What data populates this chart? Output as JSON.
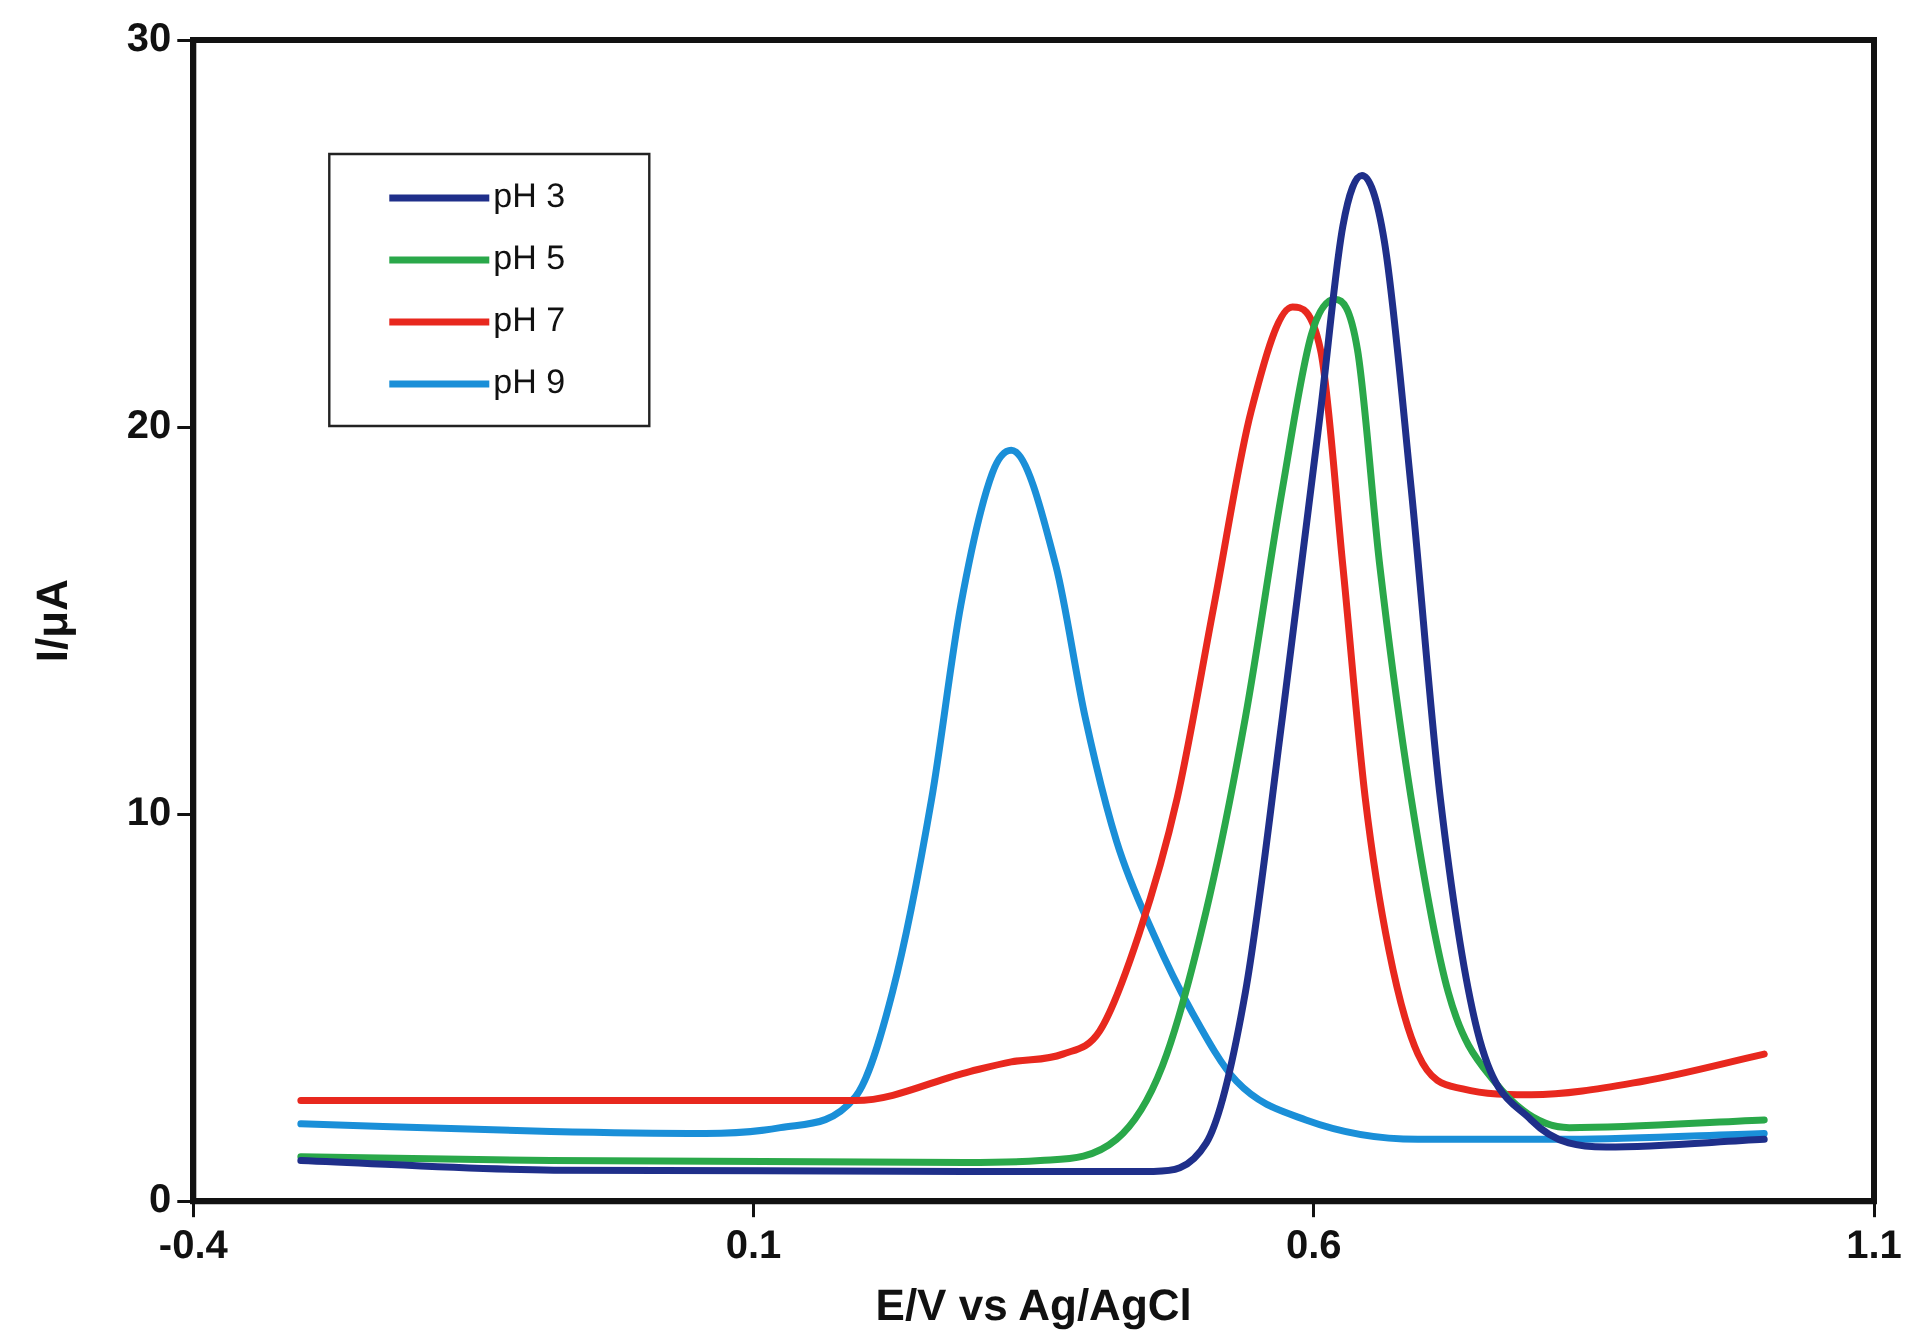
{
  "chart_data": {
    "type": "line",
    "xlabel": "E/V vs Ag/AgCl",
    "ylabel": "I/μA",
    "xlim": [
      -0.4,
      1.1
    ],
    "xticks": [
      -0.4,
      0.1,
      0.6,
      1.1
    ],
    "ylim": [
      0,
      30
    ],
    "yticks": [
      0,
      10,
      20,
      30
    ],
    "grid": false,
    "legend": "top left",
    "marker": "none",
    "line_style": "solid",
    "series": [
      {
        "name": "pH 3",
        "color": "#1f2f8a",
        "x": [
          -0.304,
          -0.078,
          0.289,
          0.457,
          0.504,
          0.539,
          0.572,
          0.606,
          0.626,
          0.643,
          0.663,
          0.687,
          0.713,
          0.746,
          0.794,
          0.861,
          1.002
        ],
        "values": [
          1.05,
          0.8,
          0.77,
          0.77,
          1.5,
          5.4,
          12.5,
          20.4,
          25.2,
          26.5,
          24.8,
          18.4,
          10.4,
          4.4,
          2.1,
          1.4,
          1.6
        ]
      },
      {
        "name": "pH 5",
        "color": "#2aa84a",
        "x": [
          -0.304,
          -0.081,
          0.289,
          0.356,
          0.424,
          0.465,
          0.504,
          0.539,
          0.572,
          0.598,
          0.619,
          0.639,
          0.659,
          0.687,
          0.72,
          0.761,
          0.828,
          1.002
        ],
        "values": [
          1.15,
          1.05,
          1.0,
          1.05,
          1.6,
          3.5,
          7.5,
          12.5,
          18.4,
          22.4,
          23.3,
          22.0,
          16.4,
          10.4,
          5.4,
          3.1,
          1.9,
          2.1
        ]
      },
      {
        "name": "pH 7",
        "color": "#e8281e",
        "x": [
          -0.304,
          -0.081,
          0.191,
          0.293,
          0.33,
          0.376,
          0.409,
          0.444,
          0.478,
          0.511,
          0.544,
          0.581,
          0.606,
          0.626,
          0.646,
          0.667,
          0.693,
          0.733,
          0.794,
          0.894,
          1.002
        ],
        "values": [
          2.6,
          2.6,
          2.6,
          3.35,
          3.6,
          3.8,
          4.4,
          6.9,
          10.4,
          15.4,
          20.4,
          23.1,
          22.0,
          16.4,
          10.4,
          6.5,
          3.8,
          2.9,
          2.75,
          3.1,
          3.8
        ]
      },
      {
        "name": "pH 9",
        "color": "#1a8fd8",
        "x": [
          -0.304,
          -0.081,
          0.057,
          0.124,
          0.191,
          0.224,
          0.259,
          0.285,
          0.313,
          0.33,
          0.37,
          0.396,
          0.424,
          0.457,
          0.491,
          0.531,
          0.593,
          0.693,
          0.828,
          1.002
        ],
        "values": [
          2.0,
          1.8,
          1.75,
          1.9,
          2.7,
          5.4,
          10.4,
          15.4,
          18.8,
          19.4,
          16.4,
          12.5,
          9.3,
          6.9,
          4.9,
          3.1,
          2.1,
          1.6,
          1.6,
          1.75
        ]
      }
    ]
  }
}
